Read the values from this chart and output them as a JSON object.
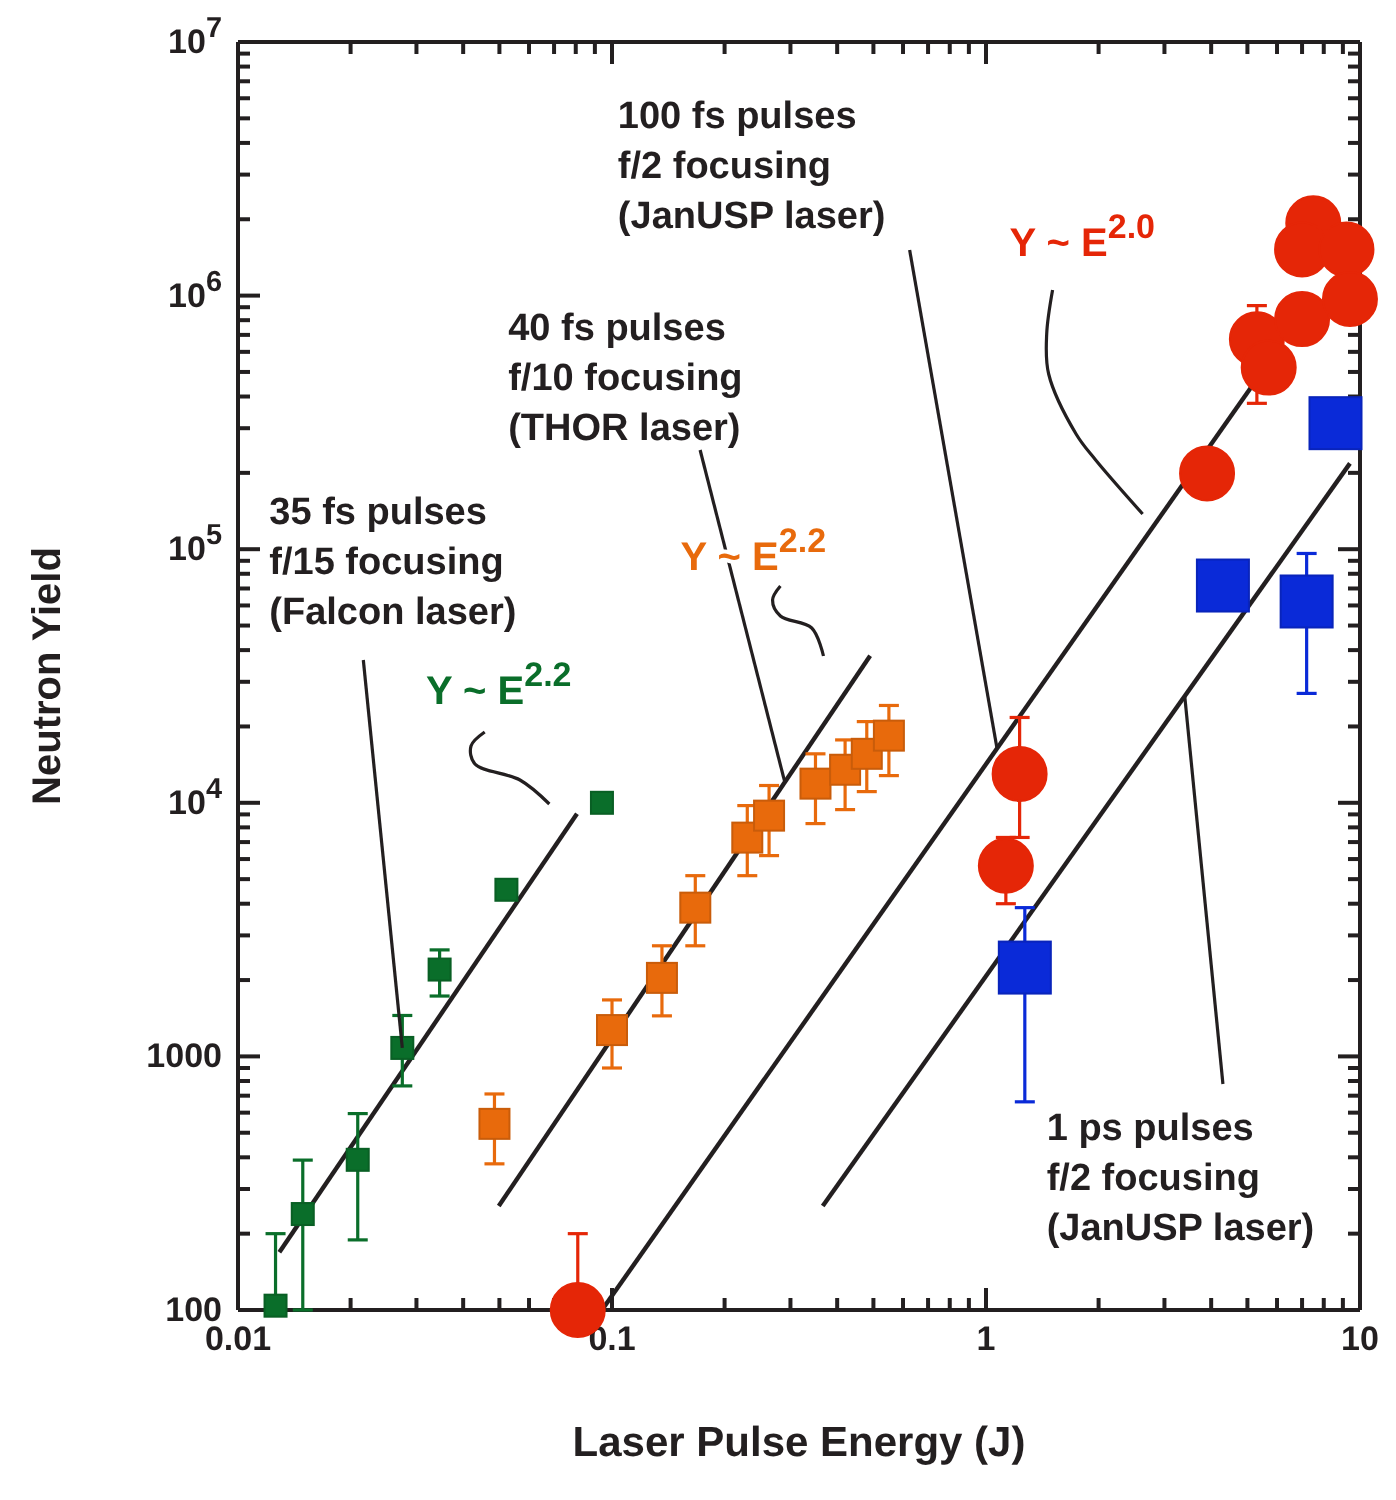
{
  "chart_data": {
    "type": "scatter",
    "xlabel": "Laser Pulse Energy (J)",
    "ylabel": "Neutron Yield",
    "log": "xy",
    "grid": false,
    "xlim": [
      0.01,
      10
    ],
    "ylim": [
      100,
      10000000
    ],
    "xticks": [
      0.01,
      {
        "value": 0.02,
        "label": null
      },
      {
        "value": 0.03,
        "label": null
      },
      {
        "value": 0.04,
        "label": null
      },
      {
        "value": 0.05,
        "label": null
      },
      {
        "value": 0.06,
        "label": null
      },
      {
        "value": 0.07,
        "label": null
      },
      {
        "value": 0.08,
        "label": null
      },
      {
        "value": 0.09,
        "label": null
      },
      0.1,
      {
        "value": 0.2,
        "label": null
      },
      {
        "value": 0.3,
        "label": null
      },
      {
        "value": 0.4,
        "label": null
      },
      {
        "value": 0.5,
        "label": null
      },
      {
        "value": 0.6,
        "label": null
      },
      {
        "value": 0.7,
        "label": null
      },
      {
        "value": 0.8,
        "label": null
      },
      {
        "value": 0.9,
        "label": null
      },
      1,
      {
        "value": 2,
        "label": null
      },
      {
        "value": 3,
        "label": null
      },
      {
        "value": 4,
        "label": null
      },
      {
        "value": 5,
        "label": null
      },
      {
        "value": 6,
        "label": null
      },
      {
        "value": 7,
        "label": null
      },
      {
        "value": 8,
        "label": null
      },
      {
        "value": 9,
        "label": null
      },
      10
    ],
    "yticks": [
      100,
      {
        "value": 200,
        "label": null
      },
      {
        "value": 300,
        "label": null
      },
      {
        "value": 400,
        "label": null
      },
      {
        "value": 500,
        "label": null
      },
      {
        "value": 600,
        "label": null
      },
      {
        "value": 700,
        "label": null
      },
      {
        "value": 800,
        "label": null
      },
      {
        "value": 900,
        "label": null
      },
      1000,
      {
        "value": 2000,
        "label": null
      },
      {
        "value": 3000,
        "label": null
      },
      {
        "value": 4000,
        "label": null
      },
      {
        "value": 5000,
        "label": null
      },
      {
        "value": 6000,
        "label": null
      },
      {
        "value": 7000,
        "label": null
      },
      {
        "value": 8000,
        "label": null
      },
      {
        "value": 9000,
        "label": null
      },
      {
        "value": 10000,
        "label": "10$^{4}$"
      },
      {
        "value": 20000,
        "label": null
      },
      {
        "value": 30000,
        "label": null
      },
      {
        "value": 40000,
        "label": null
      },
      {
        "value": 50000,
        "label": null
      },
      {
        "value": 60000,
        "label": null
      },
      {
        "value": 70000,
        "label": null
      },
      {
        "value": 80000,
        "label": null
      },
      {
        "value": 90000,
        "label": null
      },
      {
        "value": 100000,
        "label": "10$^{5}$"
      },
      {
        "value": 200000,
        "label": null
      },
      {
        "value": 300000,
        "label": null
      },
      {
        "value": 400000,
        "label": null
      },
      {
        "value": 500000,
        "label": null
      },
      {
        "value": 600000,
        "label": null
      },
      {
        "value": 700000,
        "label": null
      },
      {
        "value": 800000,
        "label": null
      },
      {
        "value": 900000,
        "label": null
      },
      {
        "value": 1000000,
        "label": "10$^{6}$"
      },
      {
        "value": 2000000,
        "label": null
      },
      {
        "value": 3000000,
        "label": null
      },
      {
        "value": 4000000,
        "label": null
      },
      {
        "value": 5000000,
        "label": null
      },
      {
        "value": 6000000,
        "label": null
      },
      {
        "value": 7000000,
        "label": null
      },
      {
        "value": 8000000,
        "label": null
      },
      {
        "value": 9000000,
        "label": null
      },
      {
        "value": 10000000,
        "label": "10$^{7}$"
      }
    ],
    "series": [
      {
        "type": "line",
        "color": "#231f20",
        "marker": "none",
        "line_style": "solid",
        "x": [
          0.0129,
          0.0806
        ],
        "values": [
          169,
          9060
        ]
      },
      {
        "type": "line",
        "color": "#231f20",
        "marker": "none",
        "line_style": "solid",
        "x": [
          0.0498,
          0.49
        ],
        "values": [
          257,
          38000
        ]
      },
      {
        "type": "line",
        "color": "#231f20",
        "marker": "none",
        "line_style": "solid",
        "x": [
          0.094,
          5.2
        ],
        "values": [
          100,
          450000
        ]
      },
      {
        "type": "line",
        "color": "#231f20",
        "marker": "none",
        "line_style": "solid",
        "x": [
          0.366,
          9.4
        ],
        "values": [
          257,
          218000
        ]
      },
      {
        "color": "#0a6e2a",
        "marker": "square",
        "x": [
          0.0126,
          0.0149,
          0.0209,
          0.0275,
          0.0346,
          0.0522,
          0.094
        ],
        "values": [
          104,
          239,
          391,
          1080,
          2200,
          4540,
          10000
        ],
        "errors": [
          [
            100,
            200
          ],
          [
            100,
            390
          ],
          [
            189,
            595
          ],
          [
            765,
            1450
          ],
          [
            1730,
            2630
          ],
          [
            4300,
            4800
          ],
          null
        ]
      },
      {
        "color": "#e86a0c",
        "marker": "square",
        "x": [
          0.0485,
          0.1,
          0.136,
          0.167,
          0.23,
          0.263,
          0.35,
          0.42,
          0.48,
          0.55
        ],
        "values": [
          542,
          1270,
          2040,
          3860,
          7290,
          8900,
          11900,
          13500,
          15600,
          18400
        ],
        "errors": [
          [
            377,
            711
          ],
          [
            900,
            1670
          ],
          [
            1445,
            2730
          ],
          [
            2730,
            5160
          ],
          [
            5160,
            9750
          ],
          [
            6190,
            11700
          ],
          [
            8280,
            15600
          ],
          [
            9400,
            17700
          ],
          [
            11070,
            20900
          ],
          [
            12800,
            24200
          ]
        ]
      },
      {
        "color": "#e52607",
        "marker": "circle",
        "x": [
          0.081,
          1.13,
          1.23,
          3.9,
          5.3,
          5.7,
          7.0,
          7.5,
          7.0,
          9.2,
          9.4
        ],
        "values": [
          100,
          5650,
          13000,
          199000,
          673000,
          520000,
          808000,
          1930000,
          1520000,
          1520000,
          970000
        ],
        "errors": [
          [
            100,
            200
          ],
          [
            4000,
            7300
          ],
          [
            7300,
            21700
          ],
          null,
          [
            376000,
            913000
          ],
          null,
          null,
          null,
          null,
          null,
          null
        ]
      },
      {
        "color": "#0a2ad8",
        "marker": "square",
        "x": [
          1.27,
          4.3,
          7.2,
          8.6
        ],
        "values": [
          2240,
          71900,
          62200,
          314000
        ],
        "errors": [
          [
            662,
            3860
          ],
          null,
          [
            27000,
            96200
          ],
          null
        ]
      }
    ],
    "annotations": [
      {
        "text": "100 fs pulses\nf/2 focusing\n(JanUSP laser)",
        "x": 1.07,
        "y": 16400
      },
      "Y ~ E$^{2.0}$",
      {
        "text": "40 fs pulses\nf/10 focusing\n(THOR laser)",
        "x": 0.29,
        "y": 12000
      },
      {
        "text": "35 fs pulses\nf/15 focusing\n(Falcon laser)",
        "x": 0.0275,
        "y": 1080
      },
      "Y ~ E$^{2.2}$",
      "Y ~ E$^{2.2}$",
      {
        "text": "1 ps pulses\nf/2 focusing\n(JanUSP laser)",
        "x": 3.4,
        "y": 26300
      }
    ]
  }
}
